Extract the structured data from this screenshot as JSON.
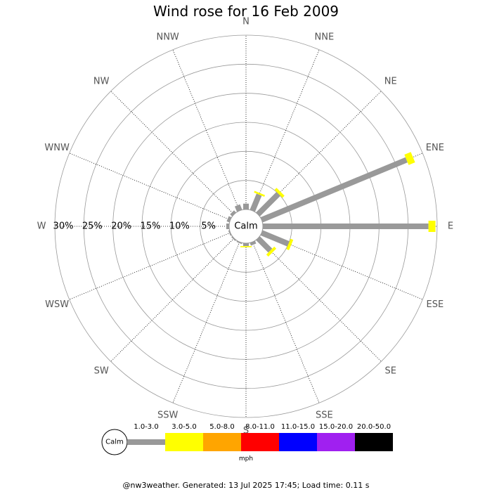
{
  "title": "Wind rose for 16 Feb 2009",
  "footer": "@nw3weather. Generated: 13 Jul 2025 17:45; Load time: 0.11 s",
  "chart_data": {
    "type": "wind-rose",
    "title": "Wind rose for 16 Feb 2009",
    "directions": [
      "N",
      "NNE",
      "NE",
      "ENE",
      "E",
      "ESE",
      "SE",
      "SSE",
      "S",
      "SSW",
      "SW",
      "WSW",
      "W",
      "WNW",
      "NW",
      "NNW"
    ],
    "radial_ticks": [
      "5%",
      "10%",
      "15%",
      "20%",
      "25%",
      "30%"
    ],
    "radial_max": 30,
    "center_label": "Calm",
    "grid": true,
    "unit": "mph",
    "speed_bins": [
      {
        "label": "1.0-3.0",
        "color": "#999999"
      },
      {
        "label": "3.0-5.0",
        "color": "#ffff00"
      },
      {
        "label": "5.0-8.0",
        "color": "#ffa500"
      },
      {
        "label": "8.0-11.0",
        "color": "#ff0000"
      },
      {
        "label": "11.0-15.0",
        "color": "#0000ff"
      },
      {
        "label": "15.0-20.0",
        "color": "#a020f0"
      },
      {
        "label": "20.0-50.0",
        "color": "#000000"
      }
    ],
    "series": [
      {
        "name": "1.0-3.0",
        "values": [
          1.0,
          3.0,
          5.0,
          27.0,
          28.5,
          5.0,
          3.0,
          0.5,
          0.5,
          0.2,
          0.2,
          0.2,
          0.5,
          0.5,
          0.5,
          1.0
        ]
      },
      {
        "name": "3.0-5.0",
        "values": [
          0.0,
          0.3,
          0.5,
          1.2,
          1.2,
          0.5,
          0.5,
          0.0,
          0.2,
          0.0,
          0.0,
          0.0,
          0.0,
          0.0,
          0.0,
          0.0
        ]
      }
    ],
    "legend_placement": "bottom"
  }
}
